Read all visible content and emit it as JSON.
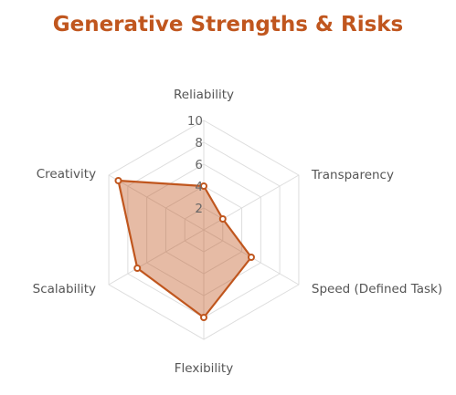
{
  "colors": {
    "accent": "#c0561e",
    "fill": "#c0561e",
    "grid": "#dddddd",
    "text": "#555555"
  },
  "chart_data": {
    "type": "radar",
    "title": "Generative Strengths & Risks",
    "axes": [
      "Reliability",
      "Transparency",
      "Speed (Defined Task)",
      "Flexibility",
      "Scalability",
      "Creativity"
    ],
    "rlim": [
      0,
      10
    ],
    "ticks": [
      2,
      4,
      6,
      8,
      10
    ],
    "tick_labels": [
      "2",
      "4",
      "6",
      "8",
      "10"
    ],
    "grid": true,
    "series": [
      {
        "values": [
          4,
          2,
          5,
          8,
          7,
          9
        ]
      }
    ]
  }
}
